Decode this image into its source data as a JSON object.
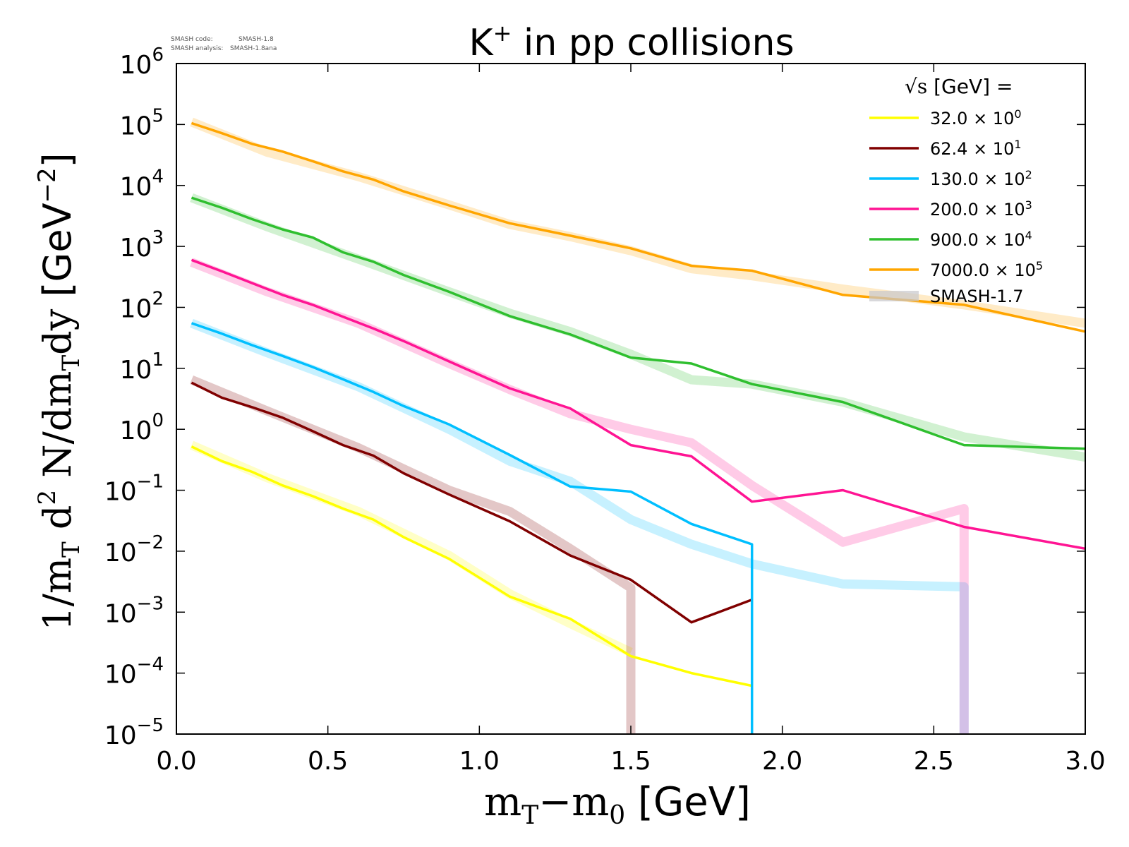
{
  "chart_data": {
    "type": "line",
    "title_main": "K",
    "title_sup": "+",
    "title_rest": " in pp collisions",
    "meta": {
      "code_label": "SMASH code:",
      "code_value": "SMASH-1.8",
      "analysis_label": "SMASH analysis:",
      "analysis_value": "SMASH-1.8ana"
    },
    "xlabel": {
      "m1": "m",
      "s1": "T",
      "op": "−m",
      "s2": "0",
      "unit": " [GeV]"
    },
    "ylabel": {
      "a": "1/m",
      "b": "T",
      "c": " d",
      "d": "2",
      "e": " N/dm",
      "f": "T",
      "g": "dy ",
      "h": "[GeV",
      "i": "−2",
      "j": "]"
    },
    "xlim": [
      0.0,
      3.0
    ],
    "ylim_log10": [
      -5,
      6
    ],
    "y_scale": "log",
    "x_ticks": [
      "0.0",
      "0.5",
      "1.0",
      "1.5",
      "2.0",
      "2.5",
      "3.0"
    ],
    "x_tick_values": [
      0.0,
      0.5,
      1.0,
      1.5,
      2.0,
      2.5,
      3.0
    ],
    "y_tick_exponents": [
      "6",
      "5",
      "4",
      "3",
      "2",
      "1",
      "0",
      "−1",
      "−2",
      "−3",
      "−4",
      "−5"
    ],
    "y_tick_values_log10": [
      6,
      5,
      4,
      3,
      2,
      1,
      0,
      -1,
      -2,
      -3,
      -4,
      -5
    ],
    "y_tick_base": "10",
    "legend": {
      "header_sqrt": "√s",
      "header_text": " [GeV] =",
      "position": "top-right",
      "times": "× 10",
      "reference_label": "SMASH-1.7",
      "reference_color": "#c8c8cc"
    },
    "series": [
      {
        "name": "32.0",
        "scale_exp": "0",
        "color": "#ffff00",
        "x": [
          0.05,
          0.15,
          0.25,
          0.35,
          0.45,
          0.55,
          0.65,
          0.75,
          0.9,
          1.1,
          1.3,
          1.5,
          1.7,
          1.9
        ],
        "y": [
          0.52,
          0.3,
          0.2,
          0.12,
          0.08,
          0.05,
          0.033,
          0.017,
          0.0075,
          0.0018,
          0.00078,
          0.00019,
          0.0001,
          6.2e-05
        ],
        "ref_x": [
          0.05,
          0.3,
          0.6,
          0.9,
          1.1,
          1.3,
          1.5
        ],
        "ref_y": [
          0.55,
          0.16,
          0.045,
          0.0085,
          0.002,
          0.00065,
          0.00022
        ]
      },
      {
        "name": "62.4",
        "scale_exp": "1",
        "color": "#800000",
        "x": [
          0.05,
          0.15,
          0.25,
          0.35,
          0.45,
          0.55,
          0.65,
          0.75,
          0.9,
          1.1,
          1.3,
          1.5,
          1.7,
          1.9
        ],
        "y": [
          5.8,
          3.3,
          2.3,
          1.55,
          0.93,
          0.55,
          0.37,
          0.19,
          0.085,
          0.031,
          0.0085,
          0.0034,
          0.00068,
          0.0016
        ],
        "ref_x": [
          0.05,
          0.3,
          0.6,
          0.9,
          1.1,
          1.3,
          1.5,
          1.5
        ],
        "ref_y": [
          6.5,
          2.0,
          0.5,
          0.1,
          0.045,
          0.011,
          0.0025,
          1e-05
        ]
      },
      {
        "name": "130.0",
        "scale_exp": "2",
        "color": "#00bfff",
        "x": [
          0.05,
          0.15,
          0.25,
          0.35,
          0.45,
          0.55,
          0.65,
          0.75,
          0.9,
          1.1,
          1.3,
          1.5,
          1.7,
          1.9,
          1.9
        ],
        "y": [
          55,
          37,
          24,
          16,
          10.5,
          6.6,
          4.1,
          2.4,
          1.2,
          0.38,
          0.115,
          0.095,
          0.028,
          0.013,
          1e-05
        ],
        "ref_x": [
          0.05,
          0.3,
          0.6,
          0.9,
          1.1,
          1.3,
          1.5,
          1.7,
          1.9,
          2.2,
          2.6,
          2.6
        ],
        "ref_y": [
          55,
          18,
          5.0,
          1.0,
          0.3,
          0.14,
          0.033,
          0.013,
          0.0062,
          0.0029,
          0.0026,
          1e-05
        ]
      },
      {
        "name": "200.0",
        "scale_exp": "3",
        "color": "#ff1493",
        "x": [
          0.05,
          0.15,
          0.25,
          0.35,
          0.45,
          0.55,
          0.65,
          0.75,
          0.9,
          1.1,
          1.3,
          1.5,
          1.7,
          1.9,
          2.2,
          2.6,
          3.0
        ],
        "y": [
          600,
          390,
          250,
          160,
          110,
          70,
          45,
          28,
          13,
          4.7,
          2.2,
          0.55,
          0.36,
          0.065,
          0.1,
          0.025,
          0.011
        ],
        "ref_x": [
          0.05,
          0.3,
          0.6,
          0.9,
          1.1,
          1.3,
          1.5,
          1.7,
          1.9,
          2.2,
          2.6,
          2.6
        ],
        "ref_y": [
          550,
          180,
          55,
          12,
          4.5,
          1.8,
          1.0,
          0.6,
          0.12,
          0.014,
          0.05,
          1e-05
        ]
      },
      {
        "name": "900.0",
        "scale_exp": "4",
        "color": "#2fbf2f",
        "x": [
          0.05,
          0.15,
          0.25,
          0.35,
          0.45,
          0.55,
          0.65,
          0.75,
          0.9,
          1.1,
          1.3,
          1.5,
          1.7,
          1.9,
          2.2,
          2.6,
          3.0
        ],
        "y": [
          6300,
          4300,
          2800,
          1900,
          1400,
          800,
          560,
          340,
          180,
          72,
          36,
          15,
          12,
          5.5,
          2.8,
          0.55,
          0.48
        ],
        "ref_x": [
          0.05,
          0.3,
          0.6,
          0.9,
          1.1,
          1.3,
          1.5,
          1.7,
          1.9,
          2.2,
          2.6,
          3.0
        ],
        "ref_y": [
          6300,
          2100,
          620,
          180,
          80,
          40,
          17,
          6.5,
          5.5,
          2.8,
          0.75,
          0.35
        ]
      },
      {
        "name": "7000.0",
        "scale_exp": "5",
        "color": "#ffa500",
        "x": [
          0.05,
          0.15,
          0.25,
          0.35,
          0.45,
          0.55,
          0.65,
          0.75,
          0.9,
          1.1,
          1.3,
          1.5,
          1.7,
          1.9,
          2.2,
          2.6,
          3.0
        ],
        "y": [
          105000,
          72000,
          48000,
          36000,
          25000,
          17000,
          12500,
          8000,
          4700,
          2400,
          1500,
          930,
          480,
          400,
          160,
          110,
          40
        ],
        "ref_x": [
          0.05,
          0.3,
          0.6,
          0.9,
          1.1,
          1.3,
          1.5,
          1.7,
          1.9,
          2.2,
          2.6,
          3.0
        ],
        "ref_y": [
          110000,
          35000,
          14000,
          4800,
          2300,
          1450,
          850,
          430,
          330,
          200,
          110,
          55
        ]
      }
    ]
  }
}
